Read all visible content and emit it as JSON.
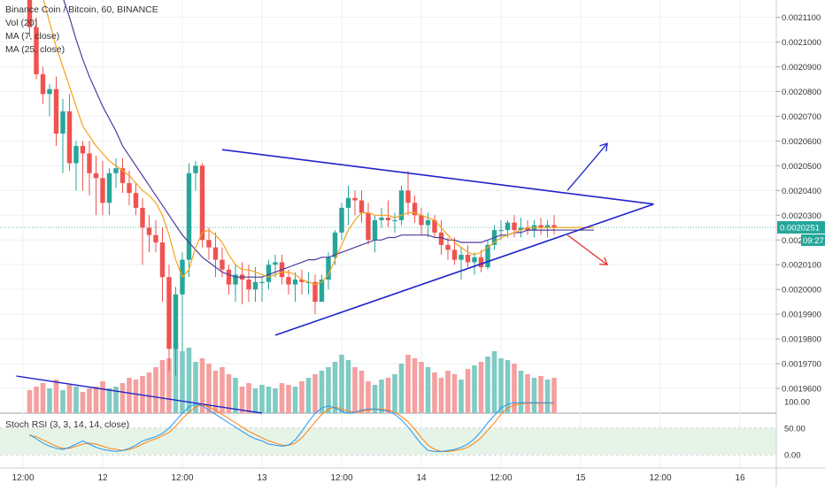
{
  "header": {
    "title": "Binance Coin / Bitcoin, 60, BINANCE",
    "indicators": [
      "Vol (20)",
      "MA (7, close)",
      "MA (25, close)"
    ]
  },
  "rsi": {
    "label": "Stoch RSI (3, 3, 14, 14, close)",
    "ticks": [
      "100.00",
      "50.00",
      "0.00"
    ]
  },
  "price_badge": {
    "value": "0.0020251",
    "countdown": "09:27"
  },
  "colors": {
    "up": "#26a69a",
    "down": "#ef5350",
    "vol_up": "#80cbc4",
    "vol_down": "#f4a0a0",
    "ma7": "#f7a21b",
    "ma25": "#4f3b9e",
    "trend": "#1f24c8",
    "arrow_down": "#e52d2d",
    "rsi_k": "#2196f3",
    "rsi_d": "#ff7f0e"
  },
  "chart_data": {
    "type": "candlestick",
    "title": "Binance Coin / Bitcoin, 60, BINANCE",
    "y_ticks": [
      "0.0021100",
      "0.0021000",
      "0.0020900",
      "0.0020800",
      "0.0020700",
      "0.0020600",
      "0.0020500",
      "0.0020400",
      "0.0020300",
      "0.0020200",
      "0.0020100",
      "0.0020000",
      "0.0019900",
      "0.0019800",
      "0.0019700",
      "0.0019600"
    ],
    "ylim": [
      0.00195,
      0.002117
    ],
    "x_ticks": [
      {
        "label": "12:00",
        "hour": -12
      },
      {
        "label": "12",
        "hour": 0
      },
      {
        "label": "12:00",
        "hour": 12
      },
      {
        "label": "13",
        "hour": 24
      },
      {
        "label": "12:00",
        "hour": 36
      },
      {
        "label": "14",
        "hour": 48
      },
      {
        "label": "12:00",
        "hour": 60
      },
      {
        "label": "15",
        "hour": 72
      },
      {
        "label": "12:00",
        "hour": 84
      },
      {
        "label": "16",
        "hour": 96
      }
    ],
    "candles_start_hour": -11,
    "candles": [
      [
        0.002117,
        0.002117,
        0.002102,
        0.002106
      ],
      [
        0.002106,
        0.00211,
        0.002085,
        0.002087
      ],
      [
        0.002087,
        0.00209,
        0.002075,
        0.002079
      ],
      [
        0.002079,
        0.002083,
        0.00207,
        0.002081
      ],
      [
        0.002081,
        0.002086,
        0.002058,
        0.002063
      ],
      [
        0.002063,
        0.002077,
        0.002047,
        0.002072
      ],
      [
        0.002072,
        0.002079,
        0.002048,
        0.002051
      ],
      [
        0.002051,
        0.00206,
        0.00204,
        0.002058
      ],
      [
        0.002058,
        0.00206,
        0.00204,
        0.002055
      ],
      [
        0.002055,
        0.00206,
        0.002038,
        0.002047
      ],
      [
        0.002047,
        0.002054,
        0.00203,
        0.002045
      ],
      [
        0.002045,
        0.002052,
        0.00203,
        0.002035
      ],
      [
        0.002035,
        0.002049,
        0.00203,
        0.002047
      ],
      [
        0.002047,
        0.002053,
        0.002041,
        0.002049
      ],
      [
        0.002049,
        0.002053,
        0.002039,
        0.002043
      ],
      [
        0.002043,
        0.002048,
        0.002034,
        0.002039
      ],
      [
        0.002039,
        0.002043,
        0.00203,
        0.002033
      ],
      [
        0.002033,
        0.002037,
        0.00201,
        0.002025
      ],
      [
        0.002025,
        0.00203,
        0.002015,
        0.002022
      ],
      [
        0.002022,
        0.002028,
        0.002015,
        0.002019
      ],
      [
        0.002019,
        0.002025,
        0.001995,
        0.002005
      ],
      [
        0.002005,
        0.00201,
        0.001967,
        0.001976
      ],
      [
        0.001976,
        0.002001,
        0.001965,
        0.001998
      ],
      [
        0.001998,
        0.002015,
        0.001975,
        0.002012
      ],
      [
        0.002012,
        0.002051,
        0.002005,
        0.002047
      ],
      [
        0.002047,
        0.002052,
        0.00204,
        0.00205
      ],
      [
        0.00205,
        0.002051,
        0.002017,
        0.00202
      ],
      [
        0.00202,
        0.002025,
        0.002012,
        0.002017
      ],
      [
        0.002017,
        0.002023,
        0.002005,
        0.002012
      ],
      [
        0.002012,
        0.002017,
        0.002005,
        0.002008
      ],
      [
        0.002008,
        0.00201,
        0.001998,
        0.002002
      ],
      [
        0.002002,
        0.00201,
        0.001995,
        0.002006
      ],
      [
        0.002006,
        0.002011,
        0.001994,
        0.002004
      ],
      [
        0.002004,
        0.00201,
        0.001995,
        0.002
      ],
      [
        0.002,
        0.002009,
        0.001995,
        0.002003
      ],
      [
        0.002003,
        0.002005,
        0.001995,
        0.002003
      ],
      [
        0.002003,
        0.002012,
        0.002,
        0.00201
      ],
      [
        0.00201,
        0.002014,
        0.002005,
        0.002011
      ],
      [
        0.002011,
        0.002014,
        0.002002,
        0.002005
      ],
      [
        0.002005,
        0.002008,
        0.001998,
        0.002002
      ],
      [
        0.002002,
        0.002007,
        0.001995,
        0.002004
      ],
      [
        0.002004,
        0.002008,
        0.001998,
        0.002003
      ],
      [
        0.002003,
        0.002007,
        0.001998,
        0.002003
      ],
      [
        0.002003,
        0.002006,
        0.00199,
        0.001995
      ],
      [
        0.001995,
        0.002006,
        0.001995,
        0.002004
      ],
      [
        0.002004,
        0.002015,
        0.002,
        0.002013
      ],
      [
        0.002013,
        0.002024,
        0.00201,
        0.002023
      ],
      [
        0.002023,
        0.002035,
        0.00202,
        0.002033
      ],
      [
        0.002033,
        0.002042,
        0.002026,
        0.002037
      ],
      [
        0.002037,
        0.00204,
        0.00203,
        0.002036
      ],
      [
        0.002036,
        0.00204,
        0.002027,
        0.002031
      ],
      [
        0.002031,
        0.002035,
        0.002018,
        0.00202
      ],
      [
        0.00202,
        0.00203,
        0.002015,
        0.002028
      ],
      [
        0.002028,
        0.002033,
        0.002025,
        0.002029
      ],
      [
        0.002029,
        0.002036,
        0.002025,
        0.002028
      ],
      [
        0.002028,
        0.002031,
        0.002023,
        0.002028
      ],
      [
        0.002028,
        0.002042,
        0.002026,
        0.00204
      ],
      [
        0.00204,
        0.002048,
        0.00203,
        0.002035
      ],
      [
        0.002035,
        0.002038,
        0.002027,
        0.00203
      ],
      [
        0.00203,
        0.002033,
        0.002022,
        0.002026
      ],
      [
        0.002026,
        0.002031,
        0.002021,
        0.002028
      ],
      [
        0.002028,
        0.00203,
        0.002021,
        0.002023
      ],
      [
        0.002023,
        0.002028,
        0.002014,
        0.002018
      ],
      [
        0.002018,
        0.002021,
        0.002012,
        0.002016
      ],
      [
        0.002016,
        0.002021,
        0.00201,
        0.002012
      ],
      [
        0.002012,
        0.002017,
        0.002004,
        0.002014
      ],
      [
        0.002014,
        0.002018,
        0.002009,
        0.002011
      ],
      [
        0.002011,
        0.002015,
        0.002006,
        0.002013
      ],
      [
        0.002013,
        0.002016,
        0.002007,
        0.002009
      ],
      [
        0.002009,
        0.00202,
        0.002008,
        0.002018
      ],
      [
        0.002018,
        0.002026,
        0.002016,
        0.002024
      ],
      [
        0.002024,
        0.002028,
        0.00202,
        0.002024
      ],
      [
        0.002024,
        0.002028,
        0.002021,
        0.002027
      ],
      [
        0.002027,
        0.00203,
        0.002021,
        0.002024
      ],
      [
        0.002024,
        0.002029,
        0.002021,
        0.002025
      ],
      [
        0.002025,
        0.002028,
        0.002022,
        0.002024
      ],
      [
        0.002024,
        0.002028,
        0.002021,
        0.002026
      ],
      [
        0.002026,
        0.002029,
        0.002022,
        0.002025
      ],
      [
        0.002025,
        0.002028,
        0.002021,
        0.002026
      ],
      [
        0.002026,
        0.00203,
        0.002022,
        0.002025
      ]
    ],
    "volumes": [
      26,
      30,
      34,
      28,
      38,
      26,
      32,
      30,
      24,
      28,
      30,
      36,
      28,
      30,
      34,
      40,
      38,
      42,
      46,
      52,
      60,
      62,
      78,
      70,
      74,
      58,
      62,
      56,
      48,
      52,
      44,
      40,
      30,
      34,
      28,
      32,
      30,
      28,
      34,
      32,
      30,
      36,
      40,
      44,
      48,
      52,
      58,
      66,
      60,
      52,
      48,
      36,
      32,
      38,
      40,
      44,
      56,
      66,
      62,
      58,
      52,
      46,
      40,
      48,
      44,
      38,
      50,
      54,
      58,
      64,
      70,
      62,
      60,
      56,
      48,
      44,
      40,
      42,
      38,
      40
    ],
    "ma7": [
      0.002135,
      0.002128,
      0.002118,
      0.002108,
      0.002098,
      0.00209,
      0.002082,
      0.002074,
      0.002066,
      0.002062,
      0.002058,
      0.002055,
      0.002052,
      0.00205,
      0.002048,
      0.002046,
      0.002043,
      0.00204,
      0.002038,
      0.002035,
      0.00203,
      0.002022,
      0.002012,
      0.002005,
      0.002008,
      0.002017,
      0.002023,
      0.002024,
      0.002022,
      0.002019,
      0.002014,
      0.00201,
      0.002008,
      0.002008,
      0.002007,
      0.002006,
      0.002005,
      0.002006,
      0.002007,
      0.002007,
      0.002006,
      0.002004,
      0.002003,
      0.002002,
      0.002003,
      0.002006,
      0.002012,
      0.002018,
      0.002024,
      0.002028,
      0.002031,
      0.002031,
      0.00203,
      0.00203,
      0.00203,
      0.002029,
      0.00203,
      0.002031,
      0.002031,
      0.00203,
      0.002029,
      0.002028,
      0.002025,
      0.002022,
      0.002019,
      0.002017,
      0.002015,
      0.002014,
      0.002015,
      0.002017,
      0.002019,
      0.002021,
      0.002022,
      0.002023,
      0.002024,
      0.002025,
      0.002025,
      0.002025,
      0.002025,
      0.002025
    ],
    "ma25": [
      0.00216,
      0.002152,
      0.002144,
      0.002136,
      0.002127,
      0.002118,
      0.00211,
      0.002101,
      0.002093,
      0.002086,
      0.00208,
      0.002074,
      0.002069,
      0.002064,
      0.002058,
      0.002054,
      0.00205,
      0.002046,
      0.002042,
      0.002038,
      0.002034,
      0.00203,
      0.002026,
      0.002022,
      0.002019,
      0.002016,
      0.002013,
      0.002011,
      0.002009,
      0.002007,
      0.002006,
      0.002005,
      0.002005,
      0.002005,
      0.002005,
      0.002005,
      0.002006,
      0.002007,
      0.002008,
      0.002009,
      0.00201,
      0.002011,
      0.002012,
      0.002012,
      0.002013,
      0.002013,
      0.002014,
      0.002015,
      0.002016,
      0.002017,
      0.002018,
      0.002019,
      0.00202,
      0.00202,
      0.002021,
      0.002021,
      0.002022,
      0.002022,
      0.002022,
      0.002022,
      0.002022,
      0.002021,
      0.002021,
      0.00202,
      0.00202,
      0.002019,
      0.002019,
      0.002019,
      0.002019,
      0.00202,
      0.002021,
      0.002022,
      0.002022,
      0.002023,
      0.002023,
      0.002024,
      0.002024,
      0.002024,
      0.002024,
      0.002024
    ],
    "stoch_k": [
      38,
      30,
      22,
      16,
      12,
      10,
      14,
      20,
      26,
      20,
      14,
      10,
      8,
      6,
      8,
      12,
      18,
      26,
      30,
      34,
      40,
      50,
      64,
      78,
      90,
      96,
      92,
      84,
      76,
      68,
      60,
      52,
      44,
      36,
      30,
      26,
      20,
      18,
      16,
      18,
      28,
      44,
      62,
      78,
      88,
      92,
      88,
      82,
      78,
      80,
      84,
      86,
      86,
      84,
      82,
      76,
      66,
      52,
      36,
      20,
      8,
      6,
      6,
      8,
      10,
      14,
      20,
      30,
      44,
      60,
      74,
      88,
      95,
      98,
      98,
      98,
      98,
      98,
      98,
      98
    ],
    "stoch_d": [
      36,
      34,
      28,
      22,
      16,
      12,
      12,
      16,
      20,
      22,
      20,
      16,
      12,
      10,
      8,
      10,
      14,
      20,
      26,
      30,
      36,
      42,
      54,
      68,
      80,
      90,
      94,
      90,
      84,
      76,
      68,
      60,
      52,
      44,
      38,
      32,
      26,
      22,
      18,
      18,
      22,
      32,
      46,
      62,
      76,
      86,
      90,
      86,
      82,
      80,
      82,
      84,
      86,
      86,
      84,
      80,
      72,
      62,
      48,
      32,
      18,
      10,
      6,
      6,
      8,
      10,
      14,
      22,
      32,
      46,
      60,
      76,
      88,
      94,
      96,
      97,
      97,
      97,
      97,
      97
    ],
    "current_price": 0.0020251,
    "annotations": {
      "triangle": [
        {
          "from": {
            "hour": 18,
            "price": 0.0020565
          },
          "to": {
            "hour": 83,
            "price": 0.0020345
          }
        },
        {
          "from": {
            "hour": 26,
            "price": 0.0019815
          },
          "to": {
            "hour": 83,
            "price": 0.0020345
          }
        }
      ],
      "falling_line": {
        "from": {
          "hour": -13,
          "price": 0.001965
        },
        "to": {
          "hour": 24,
          "price": 0.00195
        }
      },
      "arrow_up": {
        "from": {
          "hour": 70,
          "price": 0.00204
        },
        "to": {
          "hour": 76,
          "price": 0.002059
        }
      },
      "arrow_down": {
        "from": {
          "hour": 70,
          "price": 0.002022
        },
        "to": {
          "hour": 76,
          "price": 0.00201
        }
      }
    }
  }
}
